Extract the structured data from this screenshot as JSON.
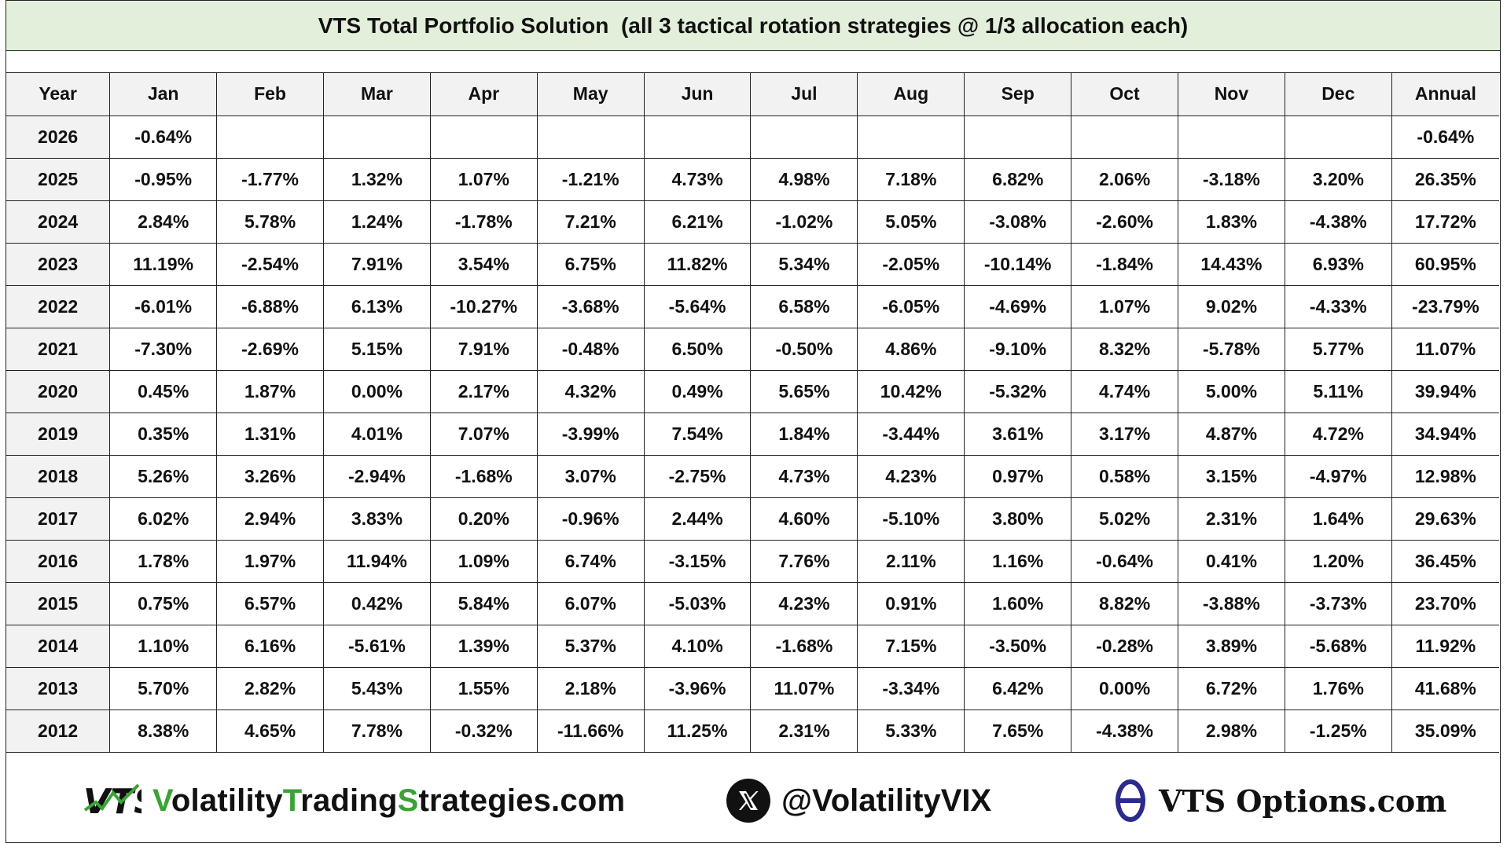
{
  "title": "VTS Total Portfolio Solution  (all 3 tactical rotation strategies @ 1/3 allocation each)",
  "chart_data": {
    "type": "table",
    "columns": [
      "Year",
      "Jan",
      "Feb",
      "Mar",
      "Apr",
      "May",
      "Jun",
      "Jul",
      "Aug",
      "Sep",
      "Oct",
      "Nov",
      "Dec",
      "Annual"
    ],
    "rows": [
      [
        "2026",
        "-0.64%",
        "",
        "",
        "",
        "",
        "",
        "",
        "",
        "",
        "",
        "",
        "",
        "-0.64%"
      ],
      [
        "2025",
        "-0.95%",
        "-1.77%",
        "1.32%",
        "1.07%",
        "-1.21%",
        "4.73%",
        "4.98%",
        "7.18%",
        "6.82%",
        "2.06%",
        "-3.18%",
        "3.20%",
        "26.35%"
      ],
      [
        "2024",
        "2.84%",
        "5.78%",
        "1.24%",
        "-1.78%",
        "7.21%",
        "6.21%",
        "-1.02%",
        "5.05%",
        "-3.08%",
        "-2.60%",
        "1.83%",
        "-4.38%",
        "17.72%"
      ],
      [
        "2023",
        "11.19%",
        "-2.54%",
        "7.91%",
        "3.54%",
        "6.75%",
        "11.82%",
        "5.34%",
        "-2.05%",
        "-10.14%",
        "-1.84%",
        "14.43%",
        "6.93%",
        "60.95%"
      ],
      [
        "2022",
        "-6.01%",
        "-6.88%",
        "6.13%",
        "-10.27%",
        "-3.68%",
        "-5.64%",
        "6.58%",
        "-6.05%",
        "-4.69%",
        "1.07%",
        "9.02%",
        "-4.33%",
        "-23.79%"
      ],
      [
        "2021",
        "-7.30%",
        "-2.69%",
        "5.15%",
        "7.91%",
        "-0.48%",
        "6.50%",
        "-0.50%",
        "4.86%",
        "-9.10%",
        "8.32%",
        "-5.78%",
        "5.77%",
        "11.07%"
      ],
      [
        "2020",
        "0.45%",
        "1.87%",
        "0.00%",
        "2.17%",
        "4.32%",
        "0.49%",
        "5.65%",
        "10.42%",
        "-5.32%",
        "4.74%",
        "5.00%",
        "5.11%",
        "39.94%"
      ],
      [
        "2019",
        "0.35%",
        "1.31%",
        "4.01%",
        "7.07%",
        "-3.99%",
        "7.54%",
        "1.84%",
        "-3.44%",
        "3.61%",
        "3.17%",
        "4.87%",
        "4.72%",
        "34.94%"
      ],
      [
        "2018",
        "5.26%",
        "3.26%",
        "-2.94%",
        "-1.68%",
        "3.07%",
        "-2.75%",
        "4.73%",
        "4.23%",
        "0.97%",
        "0.58%",
        "3.15%",
        "-4.97%",
        "12.98%"
      ],
      [
        "2017",
        "6.02%",
        "2.94%",
        "3.83%",
        "0.20%",
        "-0.96%",
        "2.44%",
        "4.60%",
        "-5.10%",
        "3.80%",
        "5.02%",
        "2.31%",
        "1.64%",
        "29.63%"
      ],
      [
        "2016",
        "1.78%",
        "1.97%",
        "11.94%",
        "1.09%",
        "6.74%",
        "-3.15%",
        "7.76%",
        "2.11%",
        "1.16%",
        "-0.64%",
        "0.41%",
        "1.20%",
        "36.45%"
      ],
      [
        "2015",
        "0.75%",
        "6.57%",
        "0.42%",
        "5.84%",
        "6.07%",
        "-5.03%",
        "4.23%",
        "0.91%",
        "1.60%",
        "8.82%",
        "-3.88%",
        "-3.73%",
        "23.70%"
      ],
      [
        "2014",
        "1.10%",
        "6.16%",
        "-5.61%",
        "1.39%",
        "5.37%",
        "4.10%",
        "-1.68%",
        "7.15%",
        "-3.50%",
        "-0.28%",
        "3.89%",
        "-5.68%",
        "11.92%"
      ],
      [
        "2013",
        "5.70%",
        "2.82%",
        "5.43%",
        "1.55%",
        "2.18%",
        "-3.96%",
        "11.07%",
        "-3.34%",
        "6.42%",
        "0.00%",
        "6.72%",
        "1.76%",
        "41.68%"
      ],
      [
        "2012",
        "8.38%",
        "4.65%",
        "7.78%",
        "-0.32%",
        "-11.66%",
        "11.25%",
        "2.31%",
        "5.33%",
        "7.65%",
        "-4.38%",
        "2.98%",
        "-1.25%",
        "35.09%"
      ]
    ]
  },
  "footer": {
    "logo_text": "VTS",
    "brand_parts": [
      {
        "text": "V",
        "accent": true
      },
      {
        "text": "olatility",
        "accent": false
      },
      {
        "text": "T",
        "accent": true
      },
      {
        "text": "rading",
        "accent": false
      },
      {
        "text": "S",
        "accent": true
      },
      {
        "text": "trategies.com",
        "accent": false
      }
    ],
    "x_icon": "x-logo-icon",
    "x_handle": "@VolatilityVIX",
    "options_icon": "theta-icon",
    "options_text": "VTS Options.com"
  },
  "colors": {
    "title_bg": "#e2efda",
    "header_bg": "#f2f2f2",
    "accent_green": "#3aa335",
    "theta_blue": "#2b2b8c"
  }
}
